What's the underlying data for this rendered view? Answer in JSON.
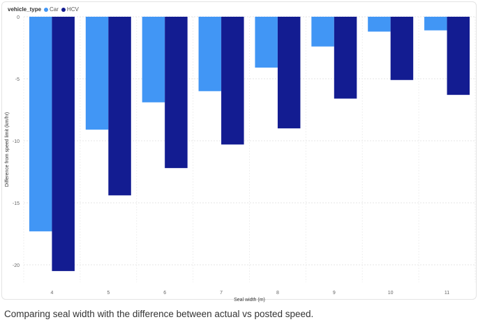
{
  "chart_data": {
    "type": "bar",
    "legend_title": "vehicle_type",
    "xlabel": "Seal width (m)",
    "ylabel": "Difference from speed limit (km/hr)",
    "categories": [
      "4",
      "5",
      "6",
      "7",
      "8",
      "9",
      "10",
      "11"
    ],
    "series": [
      {
        "name": "Car",
        "color": "#4196f5",
        "values": [
          -17.3,
          -9.1,
          -6.9,
          -6.0,
          -4.1,
          -2.4,
          -1.2,
          -1.1
        ]
      },
      {
        "name": "HCV",
        "color": "#131c91",
        "values": [
          -20.5,
          -14.4,
          -12.2,
          -10.3,
          -9.0,
          -6.6,
          -5.1,
          -6.3
        ]
      }
    ],
    "ylim": [
      -22,
      0
    ],
    "yticks": [
      0,
      -5,
      -10,
      -15,
      -20
    ],
    "grid": true,
    "legend_position": "top-left"
  },
  "caption": "Comparing seal width with the difference between actual vs posted speed."
}
